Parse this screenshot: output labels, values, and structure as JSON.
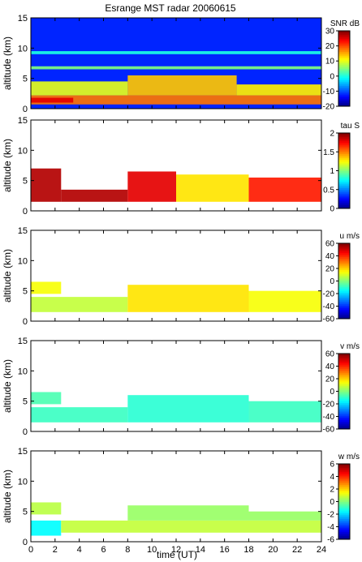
{
  "title": "Esrange MST radar 20060615",
  "xlabel": "time (UT)",
  "x_ticks": [
    0,
    2,
    4,
    6,
    8,
    10,
    12,
    14,
    16,
    18,
    20,
    22,
    24
  ],
  "y_ticks": [
    0,
    5,
    10,
    15
  ],
  "chart_data": [
    {
      "type": "heatmap",
      "ylabel": "altitude (km)",
      "xlim": [
        0,
        24
      ],
      "ylim": [
        0,
        15
      ],
      "colorbar_label": "SNR dB",
      "clim": [
        -20,
        30
      ],
      "colorbar_ticks": [
        -20,
        -10,
        0,
        10,
        20,
        30
      ],
      "colormap": "jet",
      "features": [
        {
          "x0": 0,
          "x1": 24,
          "y0": 0,
          "y1": 15,
          "value": -12
        },
        {
          "x0": 0,
          "x1": 24,
          "y0": 0.7,
          "y1": 2.2,
          "value": 18
        },
        {
          "x0": 0,
          "x1": 3.5,
          "y0": 1.0,
          "y1": 1.8,
          "value": 25
        },
        {
          "x0": 8,
          "x1": 17,
          "y0": 2.2,
          "y1": 5.5,
          "value": 14
        },
        {
          "x0": 17,
          "x1": 24,
          "y0": 2.2,
          "y1": 4.0,
          "value": 12
        },
        {
          "x0": 0,
          "x1": 8,
          "y0": 2.2,
          "y1": 4.5,
          "value": 10
        },
        {
          "x0": 0,
          "x1": 24,
          "y0": 6.5,
          "y1": 7.0,
          "value": 5
        },
        {
          "x0": 0,
          "x1": 24,
          "y0": 9.0,
          "y1": 9.5,
          "value": 0
        }
      ]
    },
    {
      "type": "heatmap",
      "ylabel": "altitude (km)",
      "xlim": [
        0,
        24
      ],
      "ylim": [
        0,
        15
      ],
      "colorbar_label": "tau S",
      "clim": [
        0,
        2
      ],
      "colorbar_ticks": [
        0,
        0.5,
        1,
        1.5,
        2
      ],
      "colormap": "jet",
      "features": [
        {
          "x0": 0,
          "x1": 2.5,
          "y0": 1.5,
          "y1": 7.0,
          "value": 1.9
        },
        {
          "x0": 2.5,
          "x1": 8,
          "y0": 1.5,
          "y1": 3.5,
          "value": 1.9
        },
        {
          "x0": 8,
          "x1": 12,
          "y0": 1.5,
          "y1": 6.5,
          "value": 1.8
        },
        {
          "x0": 12,
          "x1": 18,
          "y0": 1.5,
          "y1": 6.0,
          "value": 1.3
        },
        {
          "x0": 18,
          "x1": 24,
          "y0": 1.5,
          "y1": 5.5,
          "value": 1.7
        }
      ]
    },
    {
      "type": "heatmap",
      "ylabel": "altitude (km)",
      "xlim": [
        0,
        24
      ],
      "ylim": [
        0,
        15
      ],
      "colorbar_label": "u m/s",
      "clim": [
        -60,
        60
      ],
      "colorbar_ticks": [
        -60,
        -40,
        -20,
        0,
        20,
        40,
        60
      ],
      "colormap": "jet",
      "features": [
        {
          "x0": 0,
          "x1": 8,
          "y0": 1.5,
          "y1": 4.0,
          "value": 8
        },
        {
          "x0": 0,
          "x1": 2.5,
          "y0": 4.5,
          "y1": 6.5,
          "value": 14
        },
        {
          "x0": 8,
          "x1": 18,
          "y0": 1.5,
          "y1": 6.0,
          "value": 18
        },
        {
          "x0": 18,
          "x1": 24,
          "y0": 1.5,
          "y1": 5.0,
          "value": 14
        }
      ]
    },
    {
      "type": "heatmap",
      "ylabel": "altitude (km)",
      "xlim": [
        0,
        24
      ],
      "ylim": [
        0,
        15
      ],
      "colorbar_label": "v m/s",
      "clim": [
        -60,
        60
      ],
      "colorbar_ticks": [
        -60,
        -40,
        -20,
        0,
        20,
        40,
        60
      ],
      "colormap": "jet",
      "features": [
        {
          "x0": 0,
          "x1": 8,
          "y0": 1.5,
          "y1": 4.0,
          "value": -8
        },
        {
          "x0": 0,
          "x1": 2.5,
          "y0": 4.5,
          "y1": 6.5,
          "value": -6
        },
        {
          "x0": 8,
          "x1": 18,
          "y0": 1.5,
          "y1": 6.0,
          "value": -10
        },
        {
          "x0": 18,
          "x1": 24,
          "y0": 1.5,
          "y1": 5.0,
          "value": -8
        }
      ]
    },
    {
      "type": "heatmap",
      "ylabel": "altitude (km)",
      "xlabel": "time (UT)",
      "xlim": [
        0,
        24
      ],
      "ylim": [
        0,
        15
      ],
      "colorbar_label": "w m/s",
      "clim": [
        -6,
        6
      ],
      "colorbar_ticks": [
        -6,
        -4,
        -2,
        0,
        2,
        4,
        6
      ],
      "colormap": "jet",
      "features": [
        {
          "x0": 0,
          "x1": 2.5,
          "y0": 1.0,
          "y1": 3.5,
          "value": -1.5
        },
        {
          "x0": 2.5,
          "x1": 24,
          "y0": 1.5,
          "y1": 3.5,
          "value": 0.8
        },
        {
          "x0": 0,
          "x1": 2.5,
          "y0": 4.5,
          "y1": 6.5,
          "value": 0.7
        },
        {
          "x0": 8,
          "x1": 18,
          "y0": 3.5,
          "y1": 6.0,
          "value": 0.3
        },
        {
          "x0": 18,
          "x1": 24,
          "y0": 3.5,
          "y1": 5.0,
          "value": 0.3
        }
      ]
    }
  ]
}
